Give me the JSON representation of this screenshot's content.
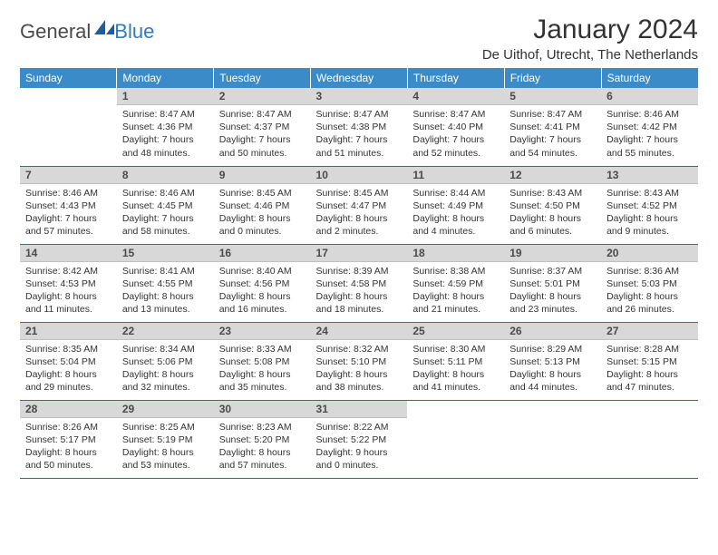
{
  "brand": {
    "text_general": "General",
    "text_blue": "Blue"
  },
  "header": {
    "title": "January 2024",
    "subtitle": "De Uithof, Utrecht, The Netherlands"
  },
  "colors": {
    "header_bg": "#3b8bc9",
    "header_text": "#ffffff",
    "daynum_bg": "#d8d8d8",
    "row_border": "#3b6a94",
    "text": "#333333",
    "brand_blue": "#2f7bbf"
  },
  "calendar": {
    "weekday_labels": [
      "Sunday",
      "Monday",
      "Tuesday",
      "Wednesday",
      "Thursday",
      "Friday",
      "Saturday"
    ],
    "first_weekday_index": 1,
    "days": [
      {
        "n": 1,
        "sunrise": "8:47 AM",
        "sunset": "4:36 PM",
        "daylight": "7 hours and 48 minutes."
      },
      {
        "n": 2,
        "sunrise": "8:47 AM",
        "sunset": "4:37 PM",
        "daylight": "7 hours and 50 minutes."
      },
      {
        "n": 3,
        "sunrise": "8:47 AM",
        "sunset": "4:38 PM",
        "daylight": "7 hours and 51 minutes."
      },
      {
        "n": 4,
        "sunrise": "8:47 AM",
        "sunset": "4:40 PM",
        "daylight": "7 hours and 52 minutes."
      },
      {
        "n": 5,
        "sunrise": "8:47 AM",
        "sunset": "4:41 PM",
        "daylight": "7 hours and 54 minutes."
      },
      {
        "n": 6,
        "sunrise": "8:46 AM",
        "sunset": "4:42 PM",
        "daylight": "7 hours and 55 minutes."
      },
      {
        "n": 7,
        "sunrise": "8:46 AM",
        "sunset": "4:43 PM",
        "daylight": "7 hours and 57 minutes."
      },
      {
        "n": 8,
        "sunrise": "8:46 AM",
        "sunset": "4:45 PM",
        "daylight": "7 hours and 58 minutes."
      },
      {
        "n": 9,
        "sunrise": "8:45 AM",
        "sunset": "4:46 PM",
        "daylight": "8 hours and 0 minutes."
      },
      {
        "n": 10,
        "sunrise": "8:45 AM",
        "sunset": "4:47 PM",
        "daylight": "8 hours and 2 minutes."
      },
      {
        "n": 11,
        "sunrise": "8:44 AM",
        "sunset": "4:49 PM",
        "daylight": "8 hours and 4 minutes."
      },
      {
        "n": 12,
        "sunrise": "8:43 AM",
        "sunset": "4:50 PM",
        "daylight": "8 hours and 6 minutes."
      },
      {
        "n": 13,
        "sunrise": "8:43 AM",
        "sunset": "4:52 PM",
        "daylight": "8 hours and 9 minutes."
      },
      {
        "n": 14,
        "sunrise": "8:42 AM",
        "sunset": "4:53 PM",
        "daylight": "8 hours and 11 minutes."
      },
      {
        "n": 15,
        "sunrise": "8:41 AM",
        "sunset": "4:55 PM",
        "daylight": "8 hours and 13 minutes."
      },
      {
        "n": 16,
        "sunrise": "8:40 AM",
        "sunset": "4:56 PM",
        "daylight": "8 hours and 16 minutes."
      },
      {
        "n": 17,
        "sunrise": "8:39 AM",
        "sunset": "4:58 PM",
        "daylight": "8 hours and 18 minutes."
      },
      {
        "n": 18,
        "sunrise": "8:38 AM",
        "sunset": "4:59 PM",
        "daylight": "8 hours and 21 minutes."
      },
      {
        "n": 19,
        "sunrise": "8:37 AM",
        "sunset": "5:01 PM",
        "daylight": "8 hours and 23 minutes."
      },
      {
        "n": 20,
        "sunrise": "8:36 AM",
        "sunset": "5:03 PM",
        "daylight": "8 hours and 26 minutes."
      },
      {
        "n": 21,
        "sunrise": "8:35 AM",
        "sunset": "5:04 PM",
        "daylight": "8 hours and 29 minutes."
      },
      {
        "n": 22,
        "sunrise": "8:34 AM",
        "sunset": "5:06 PM",
        "daylight": "8 hours and 32 minutes."
      },
      {
        "n": 23,
        "sunrise": "8:33 AM",
        "sunset": "5:08 PM",
        "daylight": "8 hours and 35 minutes."
      },
      {
        "n": 24,
        "sunrise": "8:32 AM",
        "sunset": "5:10 PM",
        "daylight": "8 hours and 38 minutes."
      },
      {
        "n": 25,
        "sunrise": "8:30 AM",
        "sunset": "5:11 PM",
        "daylight": "8 hours and 41 minutes."
      },
      {
        "n": 26,
        "sunrise": "8:29 AM",
        "sunset": "5:13 PM",
        "daylight": "8 hours and 44 minutes."
      },
      {
        "n": 27,
        "sunrise": "8:28 AM",
        "sunset": "5:15 PM",
        "daylight": "8 hours and 47 minutes."
      },
      {
        "n": 28,
        "sunrise": "8:26 AM",
        "sunset": "5:17 PM",
        "daylight": "8 hours and 50 minutes."
      },
      {
        "n": 29,
        "sunrise": "8:25 AM",
        "sunset": "5:19 PM",
        "daylight": "8 hours and 53 minutes."
      },
      {
        "n": 30,
        "sunrise": "8:23 AM",
        "sunset": "5:20 PM",
        "daylight": "8 hours and 57 minutes."
      },
      {
        "n": 31,
        "sunrise": "8:22 AM",
        "sunset": "5:22 PM",
        "daylight": "9 hours and 0 minutes."
      }
    ]
  },
  "labels": {
    "sunrise_prefix": "Sunrise: ",
    "sunset_prefix": "Sunset: ",
    "daylight_prefix": "Daylight: "
  }
}
